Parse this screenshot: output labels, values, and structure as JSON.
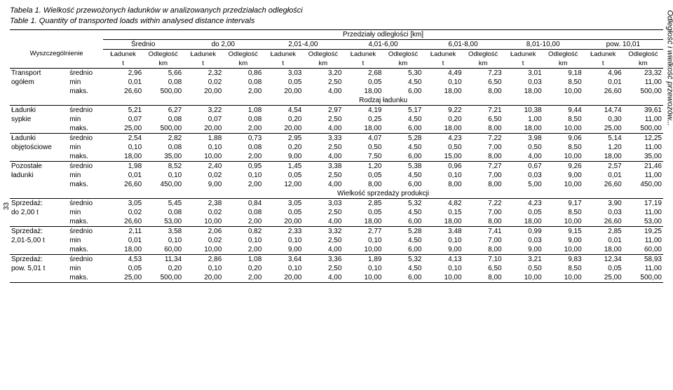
{
  "sideLabel": "Odległość i wielkość przewozów...",
  "pageNumber": "33",
  "title1": "Tabela 1. Wielkość przewożonych ładunków w analizowanych przedziałach odległości",
  "title2": "Table 1. Quantity of transported loads within analysed distance intervals",
  "header": {
    "topCenter": "Przedziały odległości [km]",
    "rowLabel": "Wyszczególnienie",
    "groups": [
      "Średnio",
      "do 2,00",
      "2,01-4,00",
      "4,01-6,00",
      "6,01-8,00",
      "8,01-10,00",
      "pow. 10,01"
    ],
    "pair": [
      "Ładunek",
      "Odległość"
    ],
    "units": [
      "t",
      "km"
    ]
  },
  "sections": [
    {
      "sectionLabel": null,
      "rows": [
        {
          "label": "Transport",
          "subLabel": "ogółem",
          "stats": [
            "średnio",
            "min",
            "maks."
          ],
          "data": [
            [
              "2,96",
              "5,66",
              "2,32",
              "0,86",
              "3,03",
              "3,20",
              "2,68",
              "5,30",
              "4,49",
              "7,23",
              "3,01",
              "9,18",
              "4,96",
              "23,32"
            ],
            [
              "0,01",
              "0,08",
              "0,02",
              "0,08",
              "0,05",
              "2,50",
              "0,05",
              "4,50",
              "0,10",
              "6,50",
              "0,03",
              "8,50",
              "0,01",
              "11,00"
            ],
            [
              "26,60",
              "500,00",
              "20,00",
              "2,00",
              "20,00",
              "4,00",
              "18,00",
              "6,00",
              "18,00",
              "8,00",
              "18,00",
              "10,00",
              "26,60",
              "500,00"
            ]
          ]
        }
      ]
    },
    {
      "sectionLabel": "Rodzaj ładunku",
      "rows": [
        {
          "label": "Ładunki",
          "subLabel": "sypkie",
          "stats": [
            "średnio",
            "min",
            "maks."
          ],
          "data": [
            [
              "5,21",
              "6,27",
              "3,22",
              "1,08",
              "4,54",
              "2,97",
              "4,19",
              "5,17",
              "9,22",
              "7,21",
              "10,38",
              "9,44",
              "14,74",
              "39,61"
            ],
            [
              "0,07",
              "0,08",
              "0,07",
              "0,08",
              "0,20",
              "2,50",
              "0,25",
              "4,50",
              "0,20",
              "6,50",
              "1,00",
              "8,50",
              "0,30",
              "11,00"
            ],
            [
              "25,00",
              "500,00",
              "20,00",
              "2,00",
              "20,00",
              "4,00",
              "18,00",
              "6,00",
              "18,00",
              "8,00",
              "18,00",
              "10,00",
              "25,00",
              "500,00"
            ]
          ]
        },
        {
          "label": "Ładunki",
          "subLabel": "objętościowe",
          "stats": [
            "średnio",
            "min",
            "maks."
          ],
          "data": [
            [
              "2,54",
              "2,82",
              "1,88",
              "0,73",
              "2,95",
              "3,33",
              "4,07",
              "5,28",
              "4,23",
              "7,22",
              "3,98",
              "9,06",
              "5,14",
              "12,25"
            ],
            [
              "0,10",
              "0,08",
              "0,10",
              "0,08",
              "0,20",
              "2,50",
              "0,50",
              "4,50",
              "0,50",
              "7,00",
              "0,50",
              "8,50",
              "1,20",
              "11,00"
            ],
            [
              "18,00",
              "35,00",
              "10,00",
              "2,00",
              "9,00",
              "4,00",
              "7,50",
              "6,00",
              "15,00",
              "8,00",
              "4,00",
              "10,00",
              "18,00",
              "35,00"
            ]
          ]
        },
        {
          "label": "Pozostałe",
          "subLabel": "ładunki",
          "stats": [
            "średnio",
            "min",
            "maks."
          ],
          "data": [
            [
              "1,98",
              "8,52",
              "2,40",
              "0,95",
              "1,45",
              "3,38",
              "1,20",
              "5,38",
              "0,96",
              "7,27",
              "0,67",
              "9,26",
              "2,57",
              "21,46"
            ],
            [
              "0,01",
              "0,10",
              "0,02",
              "0,10",
              "0,05",
              "2,50",
              "0,05",
              "4,50",
              "0,10",
              "7,00",
              "0,03",
              "9,00",
              "0,01",
              "11,00"
            ],
            [
              "26,60",
              "450,00",
              "9,00",
              "2,00",
              "12,00",
              "4,00",
              "8,00",
              "6,00",
              "8,00",
              "8,00",
              "5,00",
              "10,00",
              "26,60",
              "450,00"
            ]
          ]
        }
      ]
    },
    {
      "sectionLabel": "Wielkość sprzedaży produkcji",
      "rows": [
        {
          "label": "Sprzedaż:",
          "subLabel": "do 2,00 t",
          "stats": [
            "średnio",
            "min",
            "maks."
          ],
          "data": [
            [
              "3,05",
              "5,45",
              "2,38",
              "0,84",
              "3,05",
              "3,03",
              "2,85",
              "5,32",
              "4,82",
              "7,22",
              "4,23",
              "9,17",
              "3,90",
              "17,19"
            ],
            [
              "0,02",
              "0,08",
              "0,02",
              "0,08",
              "0,05",
              "2,50",
              "0,05",
              "4,50",
              "0,15",
              "7,00",
              "0,05",
              "8,50",
              "0,03",
              "11,00"
            ],
            [
              "26,60",
              "53,00",
              "10,00",
              "2,00",
              "20,00",
              "4,00",
              "18,00",
              "6,00",
              "18,00",
              "8,00",
              "18,00",
              "10,00",
              "26,60",
              "53,00"
            ]
          ]
        },
        {
          "label": "Sprzedaż:",
          "subLabel": "2,01-5,00 t",
          "stats": [
            "średnio",
            "min",
            "maks."
          ],
          "data": [
            [
              "2,11",
              "3,58",
              "2,06",
              "0,82",
              "2,33",
              "3,32",
              "2,77",
              "5,28",
              "3,48",
              "7,41",
              "0,99",
              "9,15",
              "2,85",
              "19,25"
            ],
            [
              "0,01",
              "0,10",
              "0,02",
              "0,10",
              "0,10",
              "2,50",
              "0,10",
              "4,50",
              "0,10",
              "7,00",
              "0,03",
              "9,00",
              "0,01",
              "11,00"
            ],
            [
              "18,00",
              "60,00",
              "10,00",
              "2,00",
              "9,00",
              "4,00",
              "10,00",
              "6,00",
              "9,00",
              "8,00",
              "9,00",
              "10,00",
              "18,00",
              "60,00"
            ]
          ]
        },
        {
          "label": "Sprzedaż:",
          "subLabel": "pow. 5,01 t",
          "stats": [
            "średnio",
            "min",
            "maks."
          ],
          "data": [
            [
              "4,53",
              "11,34",
              "2,86",
              "1,08",
              "3,64",
              "3,36",
              "1,89",
              "5,32",
              "4,13",
              "7,10",
              "3,21",
              "9,83",
              "12,34",
              "58,93"
            ],
            [
              "0,05",
              "0,20",
              "0,10",
              "0,20",
              "0,10",
              "2,50",
              "0,10",
              "4,50",
              "0,10",
              "6,50",
              "0,50",
              "8,50",
              "0,05",
              "11,00"
            ],
            [
              "25,00",
              "500,00",
              "20,00",
              "2,00",
              "20,00",
              "4,00",
              "10,00",
              "6,00",
              "10,00",
              "8,00",
              "10,00",
              "10,00",
              "25,00",
              "500,00"
            ]
          ]
        }
      ]
    }
  ]
}
